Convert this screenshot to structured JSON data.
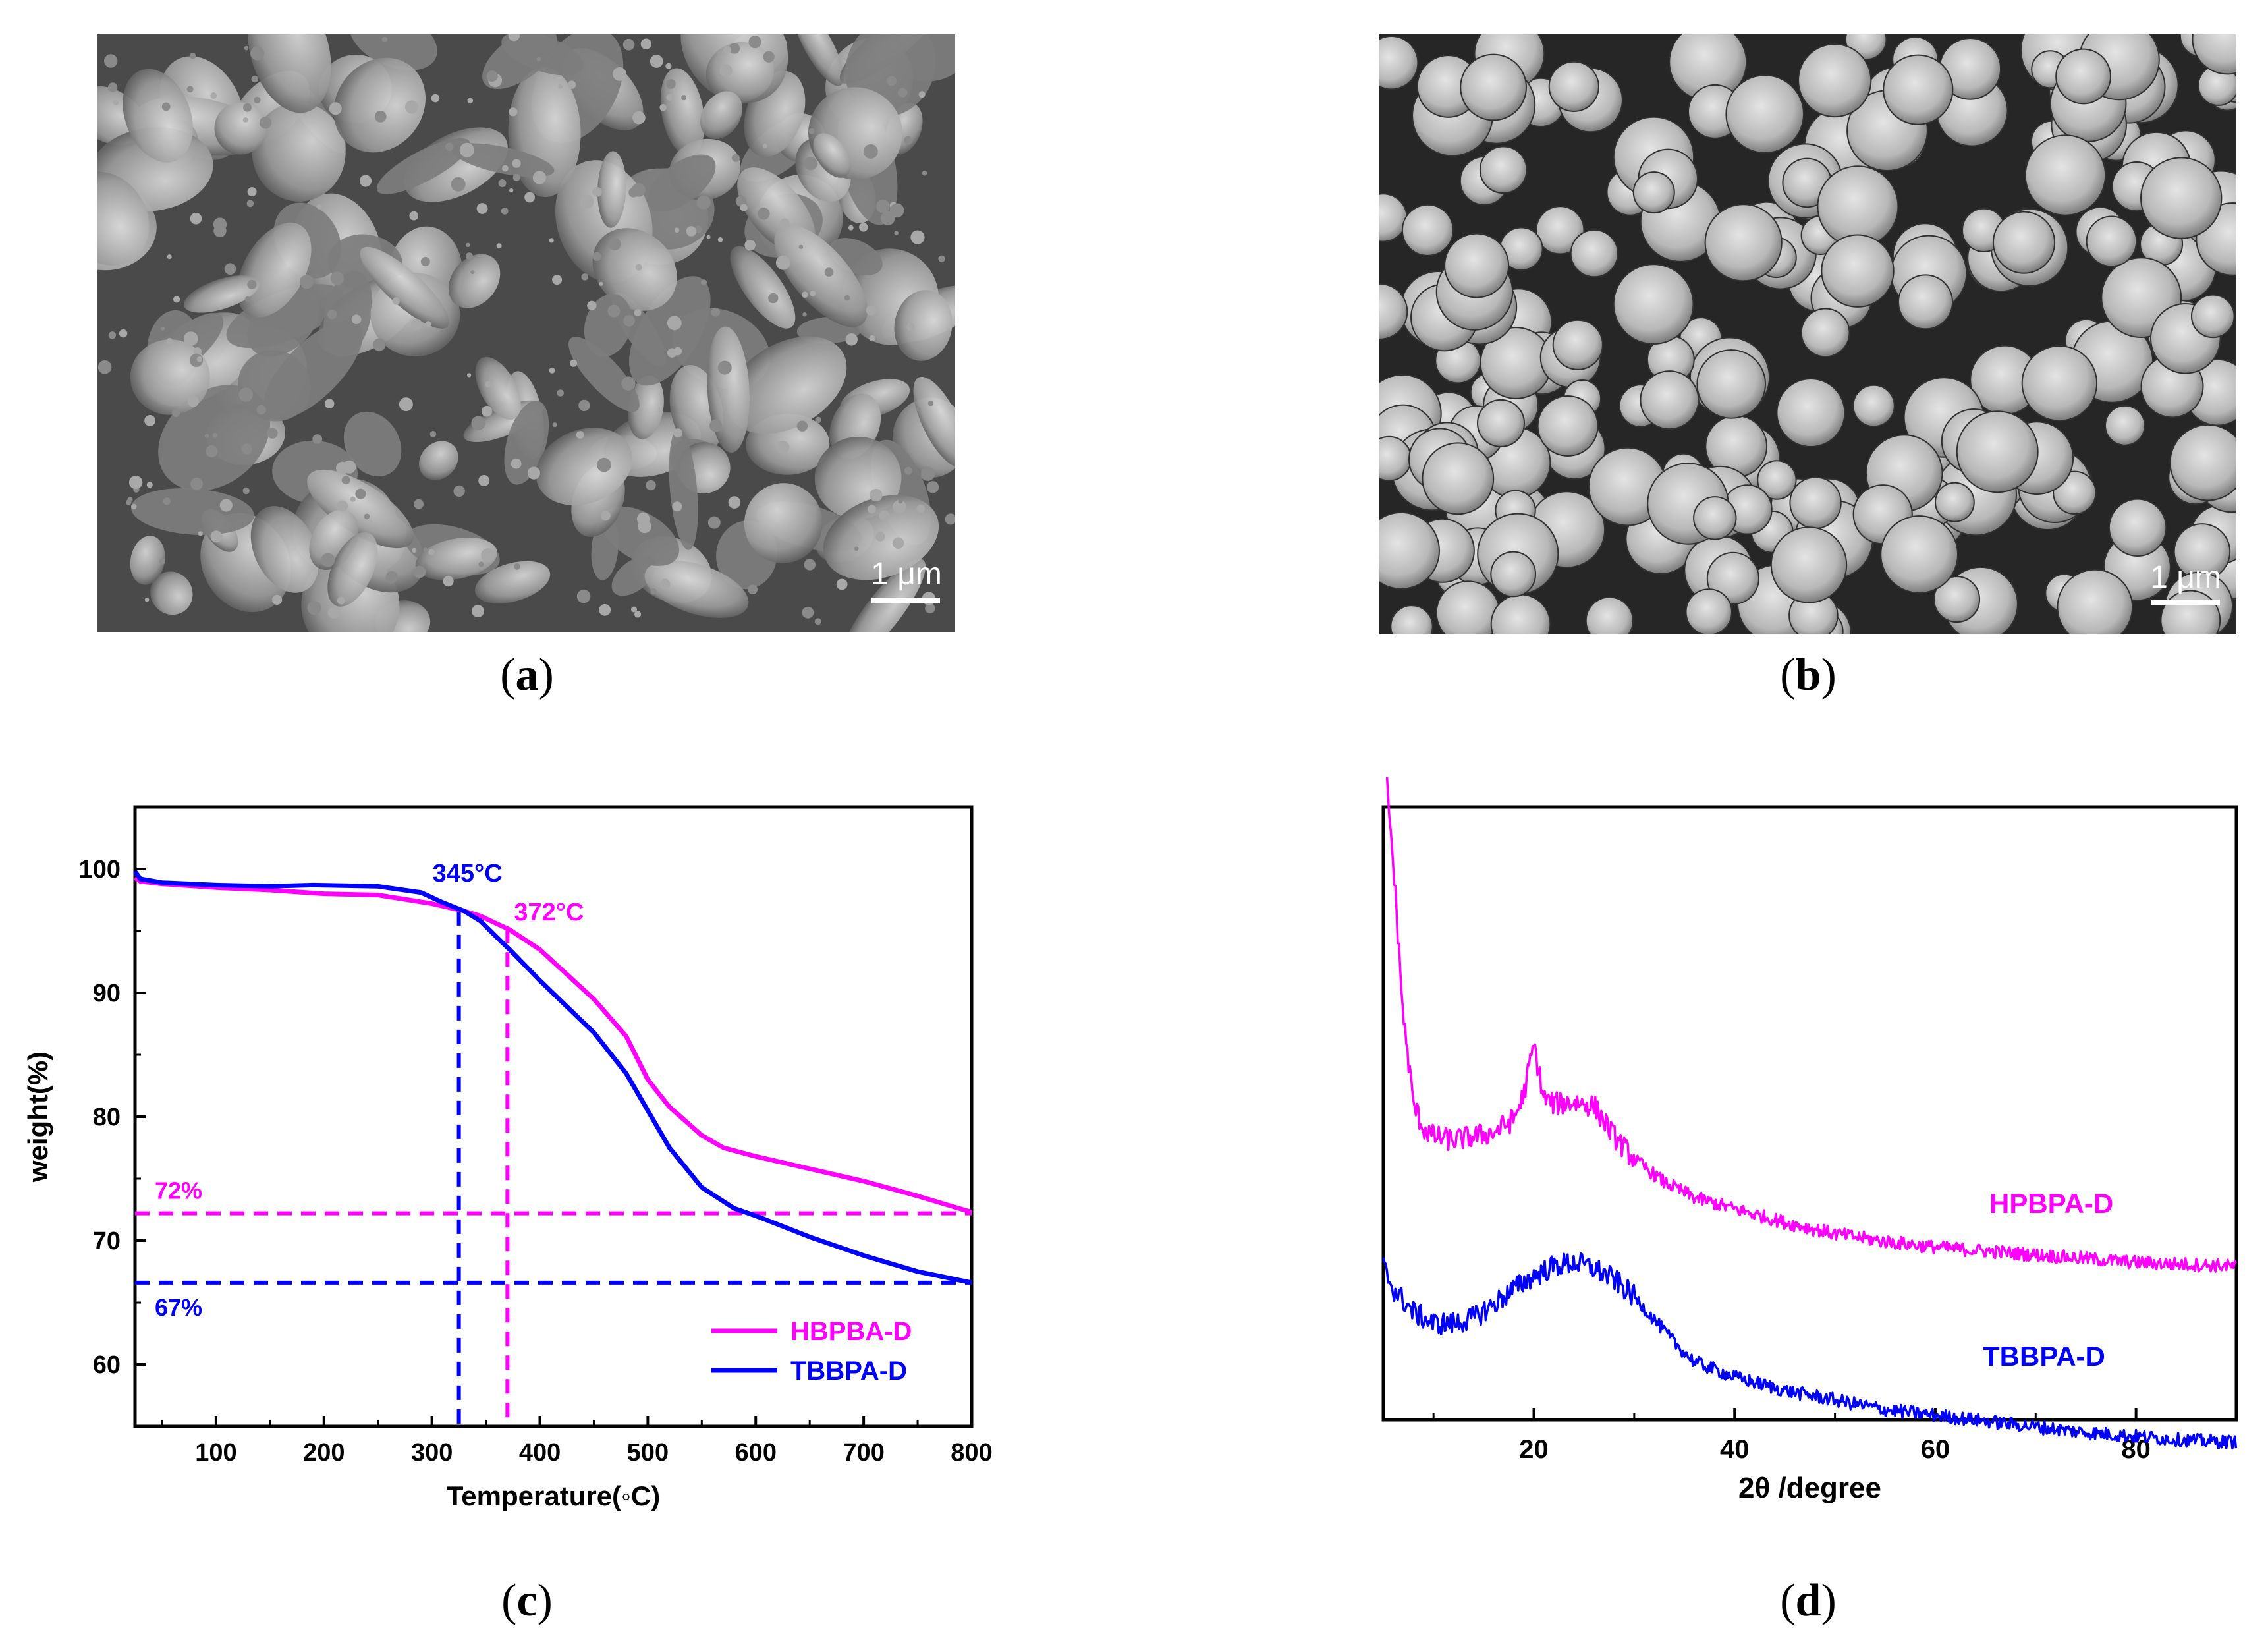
{
  "panels": {
    "a": {
      "caption_open": "(",
      "caption_letter": "a",
      "caption_close": ")",
      "scale_bar": "1 μm",
      "description": "SEM image, irregular fused particles"
    },
    "b": {
      "caption_open": "(",
      "caption_letter": "b",
      "caption_close": ")",
      "scale_bar": "1 μm",
      "description": "SEM image, spherical particles"
    },
    "c": {
      "caption_open": "(",
      "caption_letter": "c",
      "caption_close": ")"
    },
    "d": {
      "caption_open": "(",
      "caption_letter": "d",
      "caption_close": ")"
    }
  },
  "colors": {
    "magenta": "#ff00ff",
    "blue": "#0000ff"
  },
  "chart_data": [
    {
      "id": "c",
      "type": "line",
      "title": "",
      "xlabel": "Temperature(◦C)",
      "ylabel": "weight(%)",
      "xlim": [
        25,
        800
      ],
      "ylim": [
        55,
        105
      ],
      "xticks": [
        100,
        200,
        300,
        400,
        500,
        600,
        700,
        800
      ],
      "yticks": [
        60,
        70,
        80,
        90,
        100
      ],
      "legend_position": "bottom-right",
      "series": [
        {
          "name": "HBPBA-D",
          "color": "#ff00ff",
          "x": [
            25,
            30,
            50,
            100,
            150,
            200,
            250,
            300,
            330,
            345,
            372,
            400,
            450,
            480,
            500,
            520,
            550,
            570,
            600,
            650,
            700,
            750,
            800
          ],
          "y": [
            99.3,
            99.0,
            98.8,
            98.5,
            98.3,
            98.0,
            97.9,
            97.2,
            96.6,
            96.2,
            95.1,
            93.5,
            89.5,
            86.5,
            83.0,
            80.8,
            78.5,
            77.5,
            76.8,
            75.8,
            74.8,
            73.6,
            72.3
          ]
        },
        {
          "name": "TBBPA-D",
          "color": "#0000ff",
          "x": [
            25,
            30,
            50,
            100,
            150,
            190,
            250,
            290,
            310,
            330,
            345,
            360,
            372,
            400,
            450,
            480,
            500,
            520,
            550,
            580,
            600,
            650,
            700,
            750,
            800
          ],
          "y": [
            99.8,
            99.2,
            98.9,
            98.7,
            98.6,
            98.7,
            98.6,
            98.1,
            97.3,
            96.6,
            95.8,
            94.5,
            93.5,
            91.0,
            86.8,
            83.5,
            80.5,
            77.5,
            74.3,
            72.6,
            72.0,
            70.3,
            68.8,
            67.5,
            66.6
          ]
        }
      ],
      "annotations": [
        {
          "label": "345°C",
          "x": 325,
          "color": "#0000ff"
        },
        {
          "label": "372°C",
          "x": 370,
          "color": "#ff00ff"
        },
        {
          "label": "72%",
          "y": 72.2,
          "color": "#ff00ff"
        },
        {
          "label": "67%",
          "y": 66.6,
          "color": "#0000ff"
        }
      ]
    },
    {
      "id": "d",
      "type": "line",
      "title": "",
      "xlabel": "2θ /degree",
      "ylabel": "",
      "xlim": [
        5,
        90
      ],
      "xticks": [
        20,
        40,
        60,
        80
      ],
      "yticks_shown": false,
      "series": [
        {
          "name": "HPBPA-D",
          "color": "#ff00ff",
          "x": [
            5,
            6,
            7,
            8,
            9,
            10,
            12,
            14,
            16,
            18,
            19,
            20,
            21,
            22,
            24,
            26,
            28,
            30,
            33,
            36,
            40,
            45,
            50,
            55,
            60,
            65,
            70,
            75,
            80,
            85,
            90
          ],
          "y": [
            2.95,
            2.3,
            1.5,
            1.05,
            0.92,
            0.88,
            0.86,
            0.88,
            0.9,
            0.97,
            1.1,
            1.36,
            1.08,
            1.05,
            1.06,
            1.04,
            0.88,
            0.76,
            0.64,
            0.56,
            0.5,
            0.43,
            0.37,
            0.33,
            0.3,
            0.28,
            0.26,
            0.24,
            0.22,
            0.21,
            0.2
          ]
        },
        {
          "name": "TBBPA-D",
          "color": "#0000ff",
          "x": [
            5,
            6,
            8,
            10,
            12,
            14,
            16,
            18,
            20,
            22,
            24,
            26,
            28,
            30,
            32,
            34,
            36,
            40,
            45,
            50,
            55,
            60,
            65,
            70,
            75,
            80,
            85,
            90
          ],
          "y": [
            0.2,
            0.08,
            -0.04,
            -0.1,
            -0.1,
            -0.07,
            0.0,
            0.08,
            0.15,
            0.2,
            0.22,
            0.19,
            0.13,
            0.04,
            -0.08,
            -0.2,
            -0.3,
            -0.38,
            -0.45,
            -0.5,
            -0.55,
            -0.58,
            -0.61,
            -0.64,
            -0.67,
            -0.69,
            -0.71,
            -0.72
          ]
        }
      ]
    }
  ]
}
